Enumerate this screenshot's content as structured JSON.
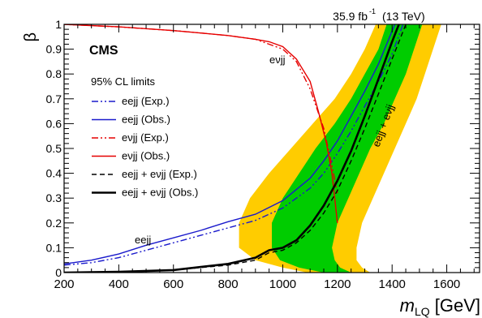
{
  "chart_data": {
    "type": "line",
    "experiment": "CMS",
    "lumi_label": "35.9 fb",
    "lumi_exponent": "-1",
    "energy_label": "(13 TeV)",
    "xlabel_main": "m",
    "xlabel_sub": "LQ",
    "xlabel_unit": "[GeV]",
    "ylabel": "β",
    "xlim": [
      200,
      1720
    ],
    "ylim": [
      0,
      1
    ],
    "xticks": [
      200,
      400,
      600,
      800,
      1000,
      1200,
      1400,
      1600
    ],
    "yticks": [
      0,
      0.1,
      0.2,
      0.3,
      0.4,
      0.5,
      0.6,
      0.7,
      0.8,
      0.9,
      1
    ],
    "legend_title": "95% CL limits",
    "legend_placement": "top-left",
    "annotations": {
      "eejj": "eejj",
      "evjj": "eνjj",
      "combined": "eejj + eνjj"
    },
    "colors": {
      "band_2sigma": "#ffcc00",
      "band_1sigma": "#00cc00",
      "eejj": "#1a1acc",
      "evjj": "#e60000",
      "combined": "#000000"
    },
    "bands": {
      "beta": [
        0.0,
        0.02,
        0.05,
        0.1,
        0.2,
        0.3,
        0.4,
        0.5,
        0.6,
        0.7,
        0.8,
        0.9,
        1.0
      ],
      "plus2sigma_x": [
        1090,
        1000,
        900,
        840,
        840,
        880,
        950,
        1030,
        1110,
        1190,
        1250,
        1300,
        1340
      ],
      "plus1sigma_x": [
        1150,
        1060,
        990,
        960,
        960,
        1000,
        1060,
        1120,
        1190,
        1250,
        1300,
        1350,
        1380
      ],
      "minus1sigma_x": [
        1250,
        1210,
        1190,
        1180,
        1200,
        1240,
        1280,
        1320,
        1370,
        1410,
        1450,
        1480,
        1510
      ],
      "minus2sigma_x": [
        1320,
        1290,
        1270,
        1270,
        1290,
        1330,
        1370,
        1410,
        1450,
        1490,
        1520,
        1550,
        1580
      ]
    },
    "series": [
      {
        "name": "eejj (Exp.)",
        "style": "dash-dot",
        "color": "#1a1acc",
        "x": [
          200,
          300,
          400,
          500,
          600,
          700,
          800,
          900,
          1000,
          1100,
          1150,
          1200,
          1250,
          1300,
          1350,
          1400,
          1440
        ],
        "y": [
          0.03,
          0.04,
          0.06,
          0.09,
          0.12,
          0.15,
          0.18,
          0.21,
          0.26,
          0.34,
          0.4,
          0.48,
          0.57,
          0.67,
          0.77,
          0.88,
          1.0
        ]
      },
      {
        "name": "eejj (Obs.)",
        "style": "solid",
        "color": "#1a1acc",
        "x": [
          200,
          300,
          400,
          500,
          600,
          700,
          800,
          900,
          1000,
          1100,
          1150,
          1200,
          1250,
          1300,
          1350,
          1410
        ],
        "y": [
          0.035,
          0.05,
          0.075,
          0.11,
          0.14,
          0.17,
          0.205,
          0.235,
          0.29,
          0.38,
          0.45,
          0.53,
          0.63,
          0.73,
          0.84,
          1.0
        ]
      },
      {
        "name": "eνjj (Exp.)",
        "style": "dash-dot",
        "color": "#e60000",
        "x": [
          200,
          400,
          600,
          700,
          800,
          900,
          950,
          1000,
          1050,
          1100,
          1150,
          1180,
          1200
        ],
        "y": [
          1.0,
          0.99,
          0.975,
          0.965,
          0.955,
          0.94,
          0.92,
          0.9,
          0.85,
          0.74,
          0.58,
          0.43,
          0.32
        ]
      },
      {
        "name": "eνjj (Obs.)",
        "style": "solid",
        "color": "#e60000",
        "x": [
          200,
          400,
          600,
          700,
          800,
          900,
          950,
          1000,
          1050,
          1100,
          1130,
          1160,
          1180,
          1190,
          1200
        ],
        "y": [
          1.0,
          0.99,
          0.975,
          0.965,
          0.955,
          0.94,
          0.93,
          0.91,
          0.86,
          0.77,
          0.65,
          0.52,
          0.4,
          0.3,
          0.2
        ]
      },
      {
        "name": "eejj + eνjj (Exp.)",
        "style": "dashed",
        "color": "#000000",
        "x": [
          200,
          400,
          600,
          800,
          900,
          950,
          1000,
          1050,
          1100,
          1150,
          1200,
          1250,
          1300,
          1350,
          1400,
          1450
        ],
        "y": [
          0.0,
          0.003,
          0.01,
          0.03,
          0.05,
          0.08,
          0.09,
          0.12,
          0.17,
          0.24,
          0.33,
          0.45,
          0.58,
          0.72,
          0.86,
          1.0
        ]
      },
      {
        "name": "eejj + eνjj (Obs.)",
        "style": "solid-thick",
        "color": "#000000",
        "x": [
          200,
          400,
          600,
          800,
          900,
          950,
          1000,
          1050,
          1100,
          1150,
          1200,
          1250,
          1300,
          1350,
          1400,
          1425
        ],
        "y": [
          0.0,
          0.003,
          0.01,
          0.035,
          0.06,
          0.09,
          0.1,
          0.13,
          0.19,
          0.27,
          0.37,
          0.49,
          0.63,
          0.78,
          0.93,
          1.0
        ]
      }
    ]
  }
}
